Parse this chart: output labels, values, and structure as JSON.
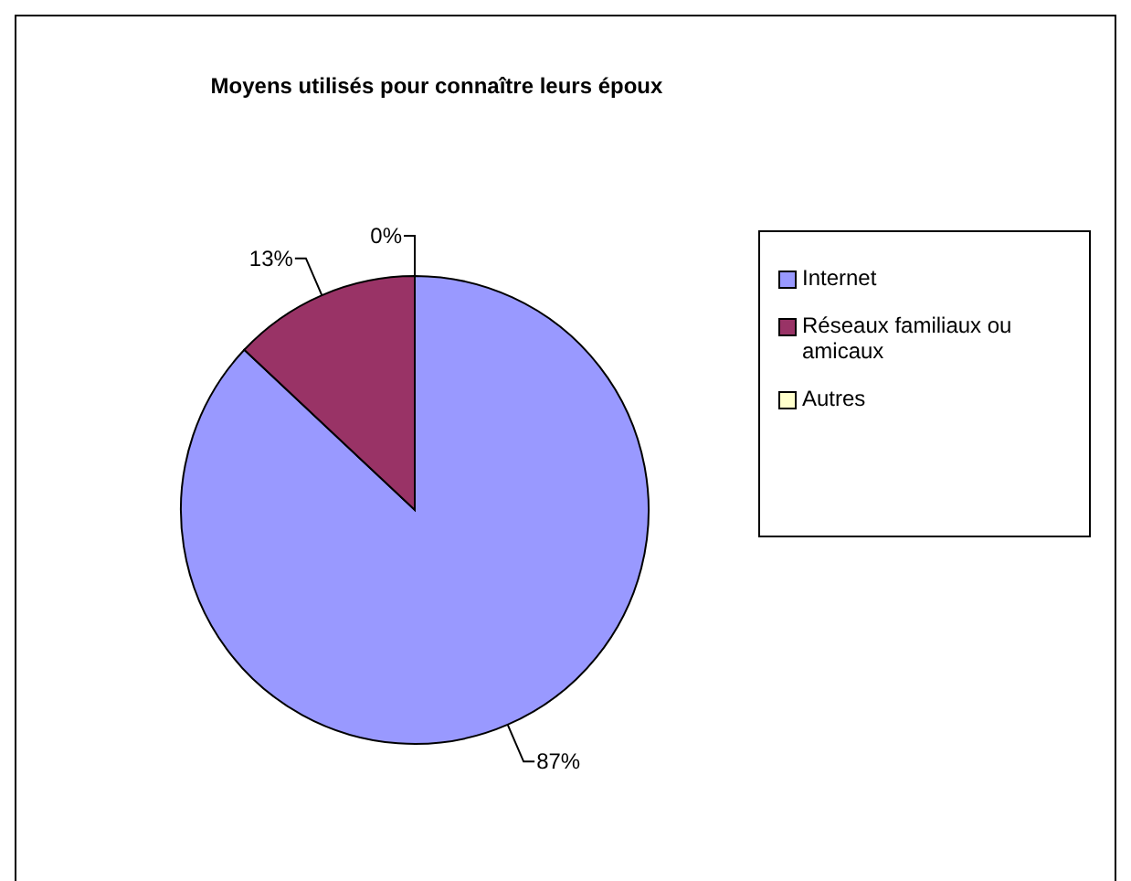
{
  "chart_data": {
    "type": "pie",
    "title": "Moyens utilisés pour connaître leurs époux",
    "categories": [
      "Internet",
      "Réseaux  familiaux ou amicaux",
      "Autres"
    ],
    "values": [
      87,
      13,
      0
    ],
    "colors": [
      "#9999ff",
      "#993366",
      "#ffffcc"
    ],
    "value_labels": [
      "87%",
      "13%",
      "0%"
    ],
    "legend": "right"
  }
}
